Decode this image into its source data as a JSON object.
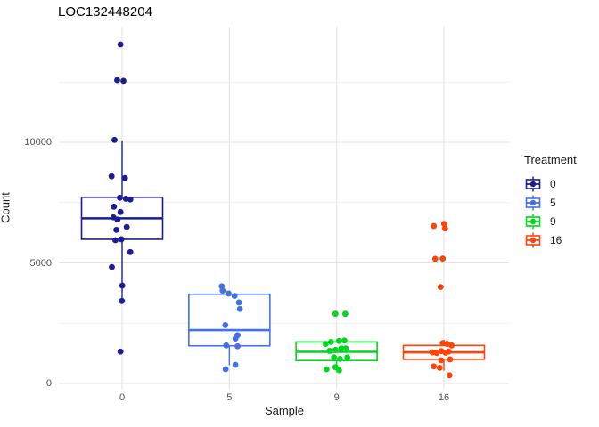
{
  "title": "LOC132448204",
  "axes": {
    "x_label": "Sample",
    "y_label": "Count",
    "x_categories": [
      "0",
      "5",
      "9",
      "16"
    ],
    "y_major_ticks": [
      0,
      5000,
      10000
    ],
    "y_minor_ticks": [
      2500,
      7500,
      12500
    ],
    "major_grid_color": "#e3e3e3",
    "minor_grid_color": "#f0f0f0"
  },
  "legend": {
    "title": "Treatment"
  },
  "chart_data": {
    "type": "boxplot",
    "title": "LOC132448204",
    "xlabel": "Sample",
    "ylabel": "Count",
    "ylim": [
      0,
      14800
    ],
    "legend_position": "right",
    "grid": true,
    "categories": [
      "0",
      "5",
      "9",
      "16"
    ],
    "groups": [
      {
        "name": "0",
        "color": "#1c1c94",
        "box": {
          "whisker_low": 3480,
          "q1": 5980,
          "median": 6850,
          "q3": 7720,
          "whisker_high": 10080
        },
        "points": [
          [
            -1.8,
            14060
          ],
          [
            -5.5,
            12580
          ],
          [
            1.5,
            12550
          ],
          [
            -8.5,
            10100
          ],
          [
            -11.8,
            8590
          ],
          [
            3.2,
            8520
          ],
          [
            -2.5,
            7700
          ],
          [
            4.2,
            7660
          ],
          [
            9.2,
            7630
          ],
          [
            -9.2,
            7330
          ],
          [
            -1.8,
            7110
          ],
          [
            -9.8,
            6890
          ],
          [
            -5.2,
            6800
          ],
          [
            5.2,
            6490
          ],
          [
            -6.5,
            6370
          ],
          [
            -0.8,
            5980
          ],
          [
            -7.5,
            5940
          ],
          [
            9.2,
            5450
          ],
          [
            -11.5,
            4830
          ],
          [
            0.2,
            4060
          ],
          [
            -0.2,
            3420
          ],
          [
            -1.8,
            1320
          ]
        ]
      },
      {
        "name": "5",
        "color": "#4470e8",
        "box": {
          "whisker_low": 760,
          "q1": 1560,
          "median": 2210,
          "q3": 3700,
          "whisker_high": 3700
        },
        "points": [
          [
            -8.5,
            4030
          ],
          [
            -7.5,
            3850
          ],
          [
            -0.8,
            3730
          ],
          [
            5.8,
            3630
          ],
          [
            10.8,
            3360
          ],
          [
            11.8,
            3090
          ],
          [
            -4.5,
            2420
          ],
          [
            9.2,
            2000
          ],
          [
            6.8,
            1860
          ],
          [
            -3.5,
            1575
          ],
          [
            9.2,
            1540
          ],
          [
            6.8,
            775
          ],
          [
            -4.2,
            590
          ]
        ]
      },
      {
        "name": "9",
        "color": "#00d81f",
        "box": {
          "whisker_low": 550,
          "q1": 950,
          "median": 1310,
          "q3": 1720,
          "whisker_high": 1800
        },
        "points": [
          [
            -1.3,
            2890
          ],
          [
            9.7,
            2890
          ],
          [
            -12.3,
            1640
          ],
          [
            -6.3,
            1720
          ],
          [
            2.7,
            1760
          ],
          [
            8.7,
            1780
          ],
          [
            -8,
            1350
          ],
          [
            -1.3,
            1390
          ],
          [
            5.3,
            1450
          ],
          [
            10.3,
            1450
          ],
          [
            -3,
            1080
          ],
          [
            3.7,
            1020
          ],
          [
            12,
            1080
          ],
          [
            -11.3,
            590
          ],
          [
            -1.3,
            675
          ],
          [
            2.7,
            550
          ]
        ]
      },
      {
        "name": "16",
        "color": "#ff4409",
        "box": {
          "whisker_low": 530,
          "q1": 1000,
          "median": 1290,
          "q3": 1575,
          "whisker_high": 1810
        },
        "points": [
          [
            -11.3,
            6530
          ],
          [
            0.3,
            6620
          ],
          [
            1.3,
            6430
          ],
          [
            -9.7,
            5170
          ],
          [
            -1.3,
            5180
          ],
          [
            -3.7,
            4000
          ],
          [
            -1.3,
            1670
          ],
          [
            3.7,
            1640
          ],
          [
            8.7,
            1575
          ],
          [
            -13,
            1290
          ],
          [
            -8,
            1260
          ],
          [
            -3,
            1340
          ],
          [
            2,
            1270
          ],
          [
            5.3,
            1320
          ],
          [
            -3,
            960
          ],
          [
            7,
            1000
          ],
          [
            -11.3,
            710
          ],
          [
            -4.7,
            650
          ],
          [
            6.3,
            340
          ]
        ]
      }
    ]
  }
}
